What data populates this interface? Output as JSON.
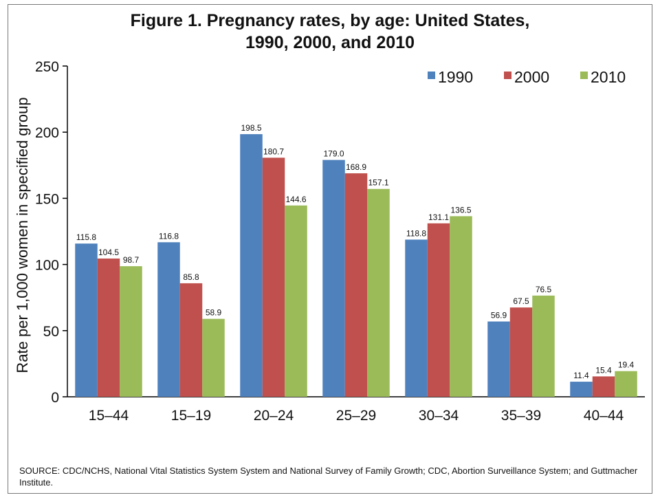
{
  "chart_data": {
    "type": "bar",
    "title": [
      "Figure 1. Pregnancy rates, by age: United States,",
      "1990, 2000, and 2010"
    ],
    "ylabel": "Rate per 1,000 women in specified group",
    "xlabel": "",
    "ylim": [
      0,
      250
    ],
    "yticks": [
      0,
      50,
      100,
      150,
      200,
      250
    ],
    "grid": false,
    "legend_position": "top-right",
    "categories": [
      "15–44",
      "15–19",
      "20–24",
      "25–29",
      "30–34",
      "35–39",
      "40–44"
    ],
    "series": [
      {
        "name": "1990",
        "color": "#4f81bd",
        "values": [
          115.8,
          116.8,
          198.5,
          179.0,
          118.8,
          56.9,
          11.4
        ],
        "labels": [
          "115.8",
          "116.8",
          "198.5",
          "179.0",
          "118.8",
          "56.9",
          "11.4"
        ]
      },
      {
        "name": "2000",
        "color": "#c0504d",
        "values": [
          104.5,
          85.8,
          180.7,
          168.9,
          131.1,
          67.5,
          15.4
        ],
        "labels": [
          "104.5",
          "85.8",
          "180.7",
          "168.9",
          "131.1",
          "67.5",
          "15.4"
        ]
      },
      {
        "name": "2010",
        "color": "#9bbb59",
        "values": [
          98.7,
          58.9,
          144.6,
          157.1,
          136.5,
          76.5,
          19.4
        ],
        "labels": [
          "98.7",
          "58.9",
          "144.6",
          "157.1",
          "136.5",
          "76.5",
          "19.4"
        ]
      }
    ]
  },
  "source": "SOURCE: CDC/NCHS, National Vital Statistics System System and National Survey of Family Growth; CDC, Abortion Surveillance System; and Guttmacher Institute."
}
